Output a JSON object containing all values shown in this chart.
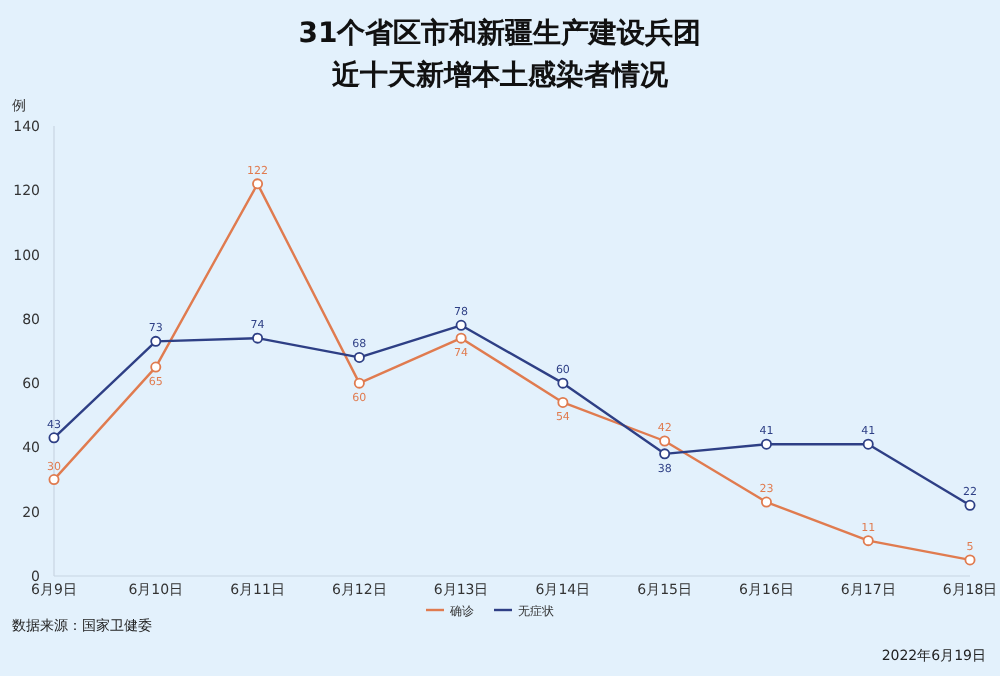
{
  "chart_data": {
    "type": "line",
    "title": "31个省区市和新疆生产建设兵团",
    "subtitle": "近十天新增本土感染者情况",
    "ylabel": "例",
    "categories": [
      "6月9日",
      "6月10日",
      "6月11日",
      "6月12日",
      "6月13日",
      "6月14日",
      "6月15日",
      "6月16日",
      "6月17日",
      "6月18日"
    ],
    "series": [
      {
        "name": "确诊",
        "color": "#e07b4f",
        "values": [
          30,
          65,
          122,
          60,
          74,
          54,
          42,
          23,
          11,
          5
        ]
      },
      {
        "name": "无症状",
        "color": "#2e3f85",
        "values": [
          43,
          73,
          74,
          68,
          78,
          60,
          38,
          41,
          41,
          22
        ]
      }
    ],
    "ylim": [
      0,
      140
    ],
    "yticks": [
      0,
      20,
      40,
      60,
      80,
      100,
      120,
      140
    ],
    "marker": "circle",
    "data_labels": true,
    "legend": "bottom",
    "annotations": [
      "数据来源：国家卫健委",
      "2022年6月19日"
    ]
  }
}
